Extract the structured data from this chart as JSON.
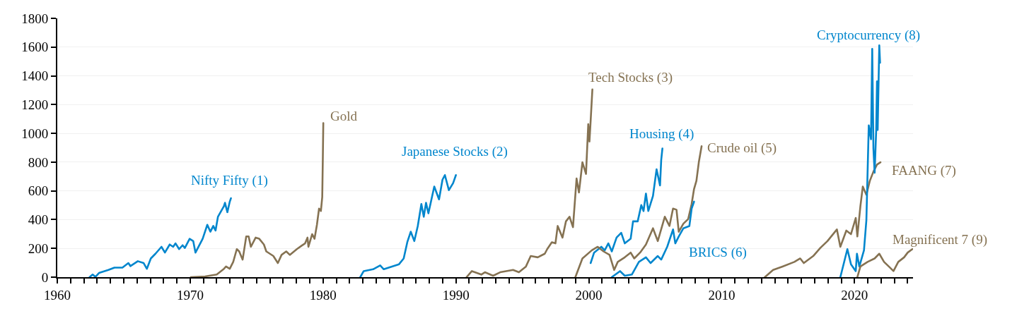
{
  "chart_data": {
    "type": "line",
    "xlim": [
      1960,
      2024.4
    ],
    "ylim": [
      0,
      1800
    ],
    "yticks": [
      0,
      200,
      400,
      600,
      800,
      1000,
      1200,
      1400,
      1600,
      1800
    ],
    "xticks": [
      1960,
      {
        "value": 1961,
        "label": null
      },
      {
        "value": 1962,
        "label": null
      },
      {
        "value": 1963,
        "label": null
      },
      {
        "value": 1964,
        "label": null
      },
      {
        "value": 1965,
        "label": null
      },
      {
        "value": 1966,
        "label": null
      },
      {
        "value": 1967,
        "label": null
      },
      {
        "value": 1968,
        "label": null
      },
      {
        "value": 1969,
        "label": null
      },
      1970,
      {
        "value": 1971,
        "label": null
      },
      {
        "value": 1972,
        "label": null
      },
      {
        "value": 1973,
        "label": null
      },
      {
        "value": 1974,
        "label": null
      },
      {
        "value": 1975,
        "label": null
      },
      {
        "value": 1976,
        "label": null
      },
      {
        "value": 1977,
        "label": null
      },
      {
        "value": 1978,
        "label": null
      },
      {
        "value": 1979,
        "label": null
      },
      1980,
      {
        "value": 1981,
        "label": null
      },
      {
        "value": 1982,
        "label": null
      },
      {
        "value": 1983,
        "label": null
      },
      {
        "value": 1984,
        "label": null
      },
      {
        "value": 1985,
        "label": null
      },
      {
        "value": 1986,
        "label": null
      },
      {
        "value": 1987,
        "label": null
      },
      {
        "value": 1988,
        "label": null
      },
      {
        "value": 1989,
        "label": null
      },
      1990,
      {
        "value": 1991,
        "label": null
      },
      {
        "value": 1992,
        "label": null
      },
      {
        "value": 1993,
        "label": null
      },
      {
        "value": 1994,
        "label": null
      },
      {
        "value": 1995,
        "label": null
      },
      {
        "value": 1996,
        "label": null
      },
      {
        "value": 1997,
        "label": null
      },
      {
        "value": 1998,
        "label": null
      },
      {
        "value": 1999,
        "label": null
      },
      2000,
      {
        "value": 2001,
        "label": null
      },
      {
        "value": 2002,
        "label": null
      },
      {
        "value": 2003,
        "label": null
      },
      {
        "value": 2004,
        "label": null
      },
      {
        "value": 2005,
        "label": null
      },
      {
        "value": 2006,
        "label": null
      },
      {
        "value": 2007,
        "label": null
      },
      {
        "value": 2008,
        "label": null
      },
      {
        "value": 2009,
        "label": null
      },
      2010,
      {
        "value": 2011,
        "label": null
      },
      {
        "value": 2012,
        "label": null
      },
      {
        "value": 2013,
        "label": null
      },
      {
        "value": 2014,
        "label": null
      },
      {
        "value": 2015,
        "label": null
      },
      {
        "value": 2016,
        "label": null
      },
      {
        "value": 2017,
        "label": null
      },
      {
        "value": 2018,
        "label": null
      },
      {
        "value": 2019,
        "label": null
      },
      2020,
      {
        "value": 2021,
        "label": null
      },
      {
        "value": 2022,
        "label": null
      },
      {
        "value": 2023,
        "label": null
      },
      {
        "value": 2024,
        "label": null
      }
    ],
    "grid": "y",
    "legend": false,
    "marker": "none",
    "line_style": "solid",
    "series": [
      {
        "name": "Nifty Fifty (1)",
        "color": "#0086cd",
        "x": [
          1962.43,
          1962.66,
          1962.87,
          1963.14,
          1963.85,
          1964.3,
          1964.9,
          1965.35,
          1965.5,
          1966.06,
          1966.5,
          1966.74,
          1967.04,
          1967.39,
          1967.84,
          1968.1,
          1968.46,
          1968.72,
          1968.9,
          1969.17,
          1969.43,
          1969.6,
          1969.96,
          1970.23,
          1970.4,
          1970.58,
          1970.94,
          1971.29,
          1971.52,
          1971.74,
          1971.91,
          1972.09,
          1972.54,
          1972.62,
          1972.8,
          1972.98,
          1973.07
        ],
        "values": [
          0,
          18,
          2,
          29,
          50,
          66,
          66,
          98,
          77,
          111,
          98,
          58,
          130,
          163,
          211,
          171,
          227,
          211,
          235,
          195,
          222,
          203,
          267,
          251,
          171,
          203,
          267,
          364,
          316,
          356,
          324,
          420,
          493,
          517,
          452,
          525,
          549
        ]
      },
      {
        "name": "Gold",
        "color": "#857252",
        "x": [
          1970.05,
          1971.12,
          1972.0,
          1972.54,
          1972.7,
          1972.98,
          1973.24,
          1973.51,
          1973.69,
          1973.95,
          1974.22,
          1974.4,
          1974.57,
          1974.93,
          1975.2,
          1975.55,
          1975.73,
          1976.26,
          1976.6,
          1976.88,
          1977.23,
          1977.5,
          1978.03,
          1978.39,
          1978.65,
          1978.83,
          1978.9,
          1979.18,
          1979.36,
          1979.54,
          1979.7,
          1979.84,
          1979.94,
          1979.98,
          1980.02
        ],
        "values": [
          0,
          5,
          18,
          58,
          74,
          58,
          106,
          195,
          179,
          122,
          283,
          283,
          211,
          275,
          267,
          227,
          179,
          147,
          98,
          155,
          179,
          155,
          195,
          219,
          235,
          275,
          211,
          299,
          267,
          364,
          477,
          460,
          557,
          799,
          1072
        ]
      },
      {
        "name": "Japanese Stocks (2)",
        "color": "#0086cd",
        "x": [
          1982.8,
          1983.06,
          1983.77,
          1984.3,
          1984.57,
          1985.72,
          1986.07,
          1986.34,
          1986.6,
          1986.87,
          1987.13,
          1987.4,
          1987.58,
          1987.75,
          1987.93,
          1988.37,
          1988.73,
          1988.99,
          1989.17,
          1989.47,
          1989.79,
          1990.0
        ],
        "values": [
          0,
          42,
          55,
          82,
          55,
          90,
          130,
          243,
          316,
          251,
          356,
          509,
          420,
          517,
          444,
          630,
          541,
          678,
          710,
          605,
          654,
          710
        ]
      },
      {
        "name": "Tech Stocks (3)",
        "color": "#857252",
        "x": [
          1990.8,
          1991.2,
          1991.91,
          1992.18,
          1992.8,
          1993.33,
          1994.3,
          1994.74,
          1995.27,
          1995.63,
          1996.16,
          1996.69,
          1996.87,
          1997.22,
          1997.49,
          1997.66,
          1998.02,
          1998.28,
          1998.55,
          1998.81,
          1999.08,
          1999.26,
          1999.52,
          1999.79,
          1999.96,
          2000.05,
          2000.14,
          2000.27
        ],
        "values": [
          0,
          42,
          18,
          34,
          10,
          34,
          50,
          34,
          74,
          147,
          138,
          163,
          195,
          243,
          235,
          356,
          275,
          388,
          420,
          348,
          686,
          589,
          799,
          718,
          1064,
          943,
          1088,
          1306
        ]
      },
      {
        "name": "Housing (4)",
        "color": "#0086cd",
        "x": [
          2000.14,
          2000.4,
          2000.94,
          2001.2,
          2001.47,
          2001.73,
          2002.09,
          2002.44,
          2002.71,
          2003.15,
          2003.33,
          2003.68,
          2003.95,
          2004.12,
          2004.3,
          2004.48,
          2004.83,
          2005.1,
          2005.36,
          2005.45,
          2005.54
        ],
        "values": [
          98,
          171,
          211,
          187,
          235,
          179,
          275,
          308,
          235,
          267,
          388,
          388,
          501,
          460,
          581,
          460,
          565,
          750,
          638,
          815,
          895
        ]
      },
      {
        "name": "Crude oil (5)",
        "color": "#857252",
        "x": [
          1998.99,
          1999.52,
          2000.23,
          2000.67,
          2001.11,
          2001.56,
          2001.91,
          2002.18,
          2002.71,
          2003.15,
          2003.42,
          2003.86,
          2004.3,
          2004.83,
          2005.19,
          2005.72,
          2006.07,
          2006.34,
          2006.6,
          2006.77,
          2007.12,
          2007.48,
          2007.74,
          2007.92,
          2008.1,
          2008.28,
          2008.49
        ],
        "values": [
          0,
          130,
          187,
          211,
          179,
          155,
          50,
          106,
          138,
          171,
          130,
          171,
          227,
          340,
          251,
          420,
          356,
          477,
          469,
          316,
          372,
          404,
          509,
          613,
          670,
          799,
          911
        ]
      },
      {
        "name": "BRICS (6)",
        "color": "#0086cd",
        "x": [
          2001.73,
          2002.35,
          2002.71,
          2003.24,
          2003.77,
          2004.3,
          2004.65,
          2005.19,
          2005.45,
          2005.9,
          2006.34,
          2006.51,
          2006.77,
          2007.12,
          2007.57,
          2007.74,
          2007.92
        ],
        "values": [
          0,
          42,
          10,
          18,
          106,
          138,
          98,
          147,
          122,
          211,
          332,
          235,
          283,
          340,
          356,
          477,
          525
        ]
      },
      {
        "name": "FAANG (7)",
        "color": "#857252",
        "x": [
          2013.25,
          2013.87,
          2014.58,
          2015.47,
          2015.91,
          2016.18,
          2016.89,
          2017.42,
          2017.96,
          2018.67,
          2018.93,
          2019.38,
          2019.73,
          2020.09,
          2020.21,
          2020.44,
          2020.62,
          2020.89,
          2021.15,
          2021.42,
          2021.69,
          2021.95
        ],
        "values": [
          0,
          50,
          74,
          106,
          130,
          98,
          147,
          203,
          251,
          332,
          211,
          324,
          299,
          412,
          283,
          493,
          630,
          573,
          670,
          734,
          783,
          799
        ]
      },
      {
        "name": "Cryptocurrency (8)",
        "color": "#0086cd",
        "x": [
          2018.93,
          2019.46,
          2019.73,
          2020.09,
          2020.18,
          2020.36,
          2020.71,
          2020.89,
          2021.07,
          2021.24,
          2021.33,
          2021.42,
          2021.51,
          2021.63,
          2021.69,
          2021.74,
          2021.86,
          2021.92
        ],
        "values": [
          0,
          195,
          90,
          42,
          163,
          74,
          187,
          396,
          1056,
          959,
          1588,
          895,
          726,
          1024,
          1362,
          1024,
          1612,
          1491
        ]
      },
      {
        "name": "Magnificent 7 (9)",
        "color": "#857252",
        "x": [
          2020.21,
          2020.44,
          2020.98,
          2021.51,
          2021.86,
          2022.22,
          2022.58,
          2022.93,
          2023.29,
          2023.73,
          2024.0,
          2024.35
        ],
        "values": [
          0,
          74,
          106,
          130,
          163,
          106,
          74,
          42,
          106,
          138,
          171,
          195
        ]
      }
    ]
  }
}
